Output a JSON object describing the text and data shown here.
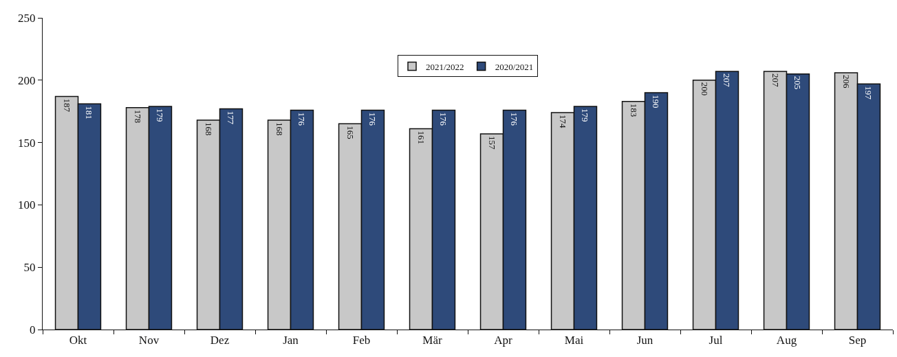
{
  "chart_data": {
    "type": "bar",
    "categories": [
      "Okt",
      "Nov",
      "Dez",
      "Jan",
      "Feb",
      "Mär",
      "Apr",
      "Mai",
      "Jun",
      "Jul",
      "Aug",
      "Sep"
    ],
    "series": [
      {
        "name": "2021/2022",
        "color": "#c8c8c8",
        "values": [
          187,
          178,
          168,
          168,
          165,
          161,
          157,
          174,
          183,
          200,
          207,
          206
        ]
      },
      {
        "name": "2020/2021",
        "color": "#2e4a7a",
        "values": [
          181,
          179,
          177,
          176,
          176,
          176,
          176,
          179,
          190,
          207,
          205,
          197
        ]
      }
    ],
    "ylim": [
      0,
      250
    ],
    "yticks": [
      0,
      50,
      100,
      150,
      200,
      250
    ],
    "grid": false,
    "legend": "top",
    "data_labels": true
  }
}
